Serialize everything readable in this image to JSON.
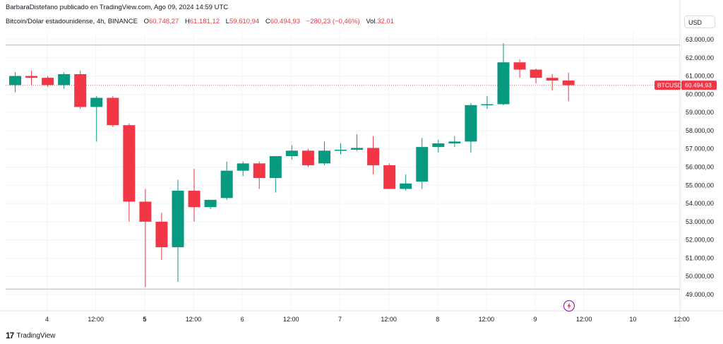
{
  "header": {
    "text": "BarbaraDistefano publicado en TradingView.com, Ago 09, 2024 14:59 UTC"
  },
  "legend": {
    "symbol": "Bitcoin/Dólar estadounidense, 4h, BINANCE",
    "open_label": "O",
    "open": "60.748,27",
    "high_label": "H",
    "high": "61.181,12",
    "low_label": "L",
    "low": "59.610,94",
    "close_label": "C",
    "close": "60.494,93",
    "change": "−280,23 (−0,46%)",
    "vol_label": "Vol.",
    "vol": "32,01"
  },
  "currency_button": "USD",
  "price_tag": {
    "ticker": "BTCUSD",
    "value": "60.494,93",
    "color": "#f23645"
  },
  "footer": {
    "brand": "TradingView",
    "logo": "17"
  },
  "colors": {
    "up": "#089981",
    "down": "#f23645",
    "grid": "#f0f3fa"
  },
  "chart_data": {
    "type": "candlestick",
    "ylim": [
      48500,
      63500
    ],
    "y_ticks": [
      49000,
      50000,
      51000,
      52000,
      53000,
      54000,
      55000,
      56000,
      57000,
      58000,
      59000,
      60000,
      61000,
      62000,
      63000
    ],
    "y_tick_labels": [
      "49.000,00",
      "50.000,00",
      "51.000,00",
      "52.000,00",
      "53.000,00",
      "54.000,00",
      "55.000,00",
      "56.000,00",
      "57.000,00",
      "58.000,00",
      "59.000,00",
      "60.000,00",
      "61.000,00",
      "62.000,00",
      "63.000,00"
    ],
    "x_tick_labels": [
      {
        "label": "4",
        "index": 1,
        "bold": false
      },
      {
        "label": "12:00",
        "index": 4,
        "bold": false
      },
      {
        "label": "5",
        "index": 7,
        "bold": true
      },
      {
        "label": "12:00",
        "index": 10,
        "bold": false
      },
      {
        "label": "6",
        "index": 13,
        "bold": false
      },
      {
        "label": "12:00",
        "index": 16,
        "bold": false
      },
      {
        "label": "7",
        "index": 19,
        "bold": false
      },
      {
        "label": "12:00",
        "index": 22,
        "bold": false
      },
      {
        "label": "8",
        "index": 25,
        "bold": false
      },
      {
        "label": "12:00",
        "index": 28,
        "bold": false
      },
      {
        "label": "9",
        "index": 31,
        "bold": false
      },
      {
        "label": "12:00",
        "index": 34,
        "bold": false
      },
      {
        "label": "10",
        "index": 37,
        "bold": false
      },
      {
        "label": "12:00",
        "index": 40,
        "bold": false
      }
    ],
    "candles": [
      {
        "o": 60500,
        "h": 61200,
        "l": 60100,
        "c": 61000
      },
      {
        "o": 61000,
        "h": 61300,
        "l": 60500,
        "c": 60900
      },
      {
        "o": 60900,
        "h": 61000,
        "l": 60400,
        "c": 60500
      },
      {
        "o": 60500,
        "h": 61200,
        "l": 60300,
        "c": 61100
      },
      {
        "o": 61100,
        "h": 61300,
        "l": 59200,
        "c": 59300
      },
      {
        "o": 59300,
        "h": 59900,
        "l": 57400,
        "c": 59800
      },
      {
        "o": 59800,
        "h": 59900,
        "l": 58200,
        "c": 58300
      },
      {
        "o": 58300,
        "h": 58400,
        "l": 53000,
        "c": 54100
      },
      {
        "o": 54100,
        "h": 54800,
        "l": 49400,
        "c": 53000
      },
      {
        "o": 53000,
        "h": 53500,
        "l": 50900,
        "c": 51600
      },
      {
        "o": 51600,
        "h": 55300,
        "l": 49700,
        "c": 54700
      },
      {
        "o": 54700,
        "h": 55900,
        "l": 53000,
        "c": 53800
      },
      {
        "o": 53800,
        "h": 54200,
        "l": 53700,
        "c": 54200
      },
      {
        "o": 54300,
        "h": 56300,
        "l": 54200,
        "c": 55800
      },
      {
        "o": 55800,
        "h": 56300,
        "l": 55500,
        "c": 56200
      },
      {
        "o": 56200,
        "h": 56300,
        "l": 54800,
        "c": 55400
      },
      {
        "o": 55400,
        "h": 56600,
        "l": 54600,
        "c": 56600
      },
      {
        "o": 56600,
        "h": 57200,
        "l": 56400,
        "c": 56900
      },
      {
        "o": 56900,
        "h": 57000,
        "l": 56000,
        "c": 56100
      },
      {
        "o": 56200,
        "h": 57400,
        "l": 56100,
        "c": 56900
      },
      {
        "o": 56900,
        "h": 57300,
        "l": 56700,
        "c": 56950
      },
      {
        "o": 56950,
        "h": 57800,
        "l": 56900,
        "c": 57050
      },
      {
        "o": 57050,
        "h": 57700,
        "l": 55600,
        "c": 56100
      },
      {
        "o": 56100,
        "h": 56200,
        "l": 54800,
        "c": 54800
      },
      {
        "o": 54800,
        "h": 55600,
        "l": 54700,
        "c": 55100
      },
      {
        "o": 55200,
        "h": 57600,
        "l": 54800,
        "c": 57100
      },
      {
        "o": 57100,
        "h": 57500,
        "l": 56800,
        "c": 57300
      },
      {
        "o": 57300,
        "h": 57700,
        "l": 57100,
        "c": 57400
      },
      {
        "o": 57400,
        "h": 59500,
        "l": 56800,
        "c": 59400
      },
      {
        "o": 59400,
        "h": 59900,
        "l": 59200,
        "c": 59450
      },
      {
        "o": 59450,
        "h": 62800,
        "l": 59400,
        "c": 61750
      },
      {
        "o": 61750,
        "h": 61900,
        "l": 60900,
        "c": 61350
      },
      {
        "o": 61350,
        "h": 61400,
        "l": 60600,
        "c": 60900
      },
      {
        "o": 60900,
        "h": 61100,
        "l": 60200,
        "c": 60750
      },
      {
        "o": 60750,
        "h": 61180,
        "l": 59610,
        "c": 60495
      }
    ],
    "ref_lines": [
      62700,
      49300
    ],
    "last_price": 60494.93
  }
}
